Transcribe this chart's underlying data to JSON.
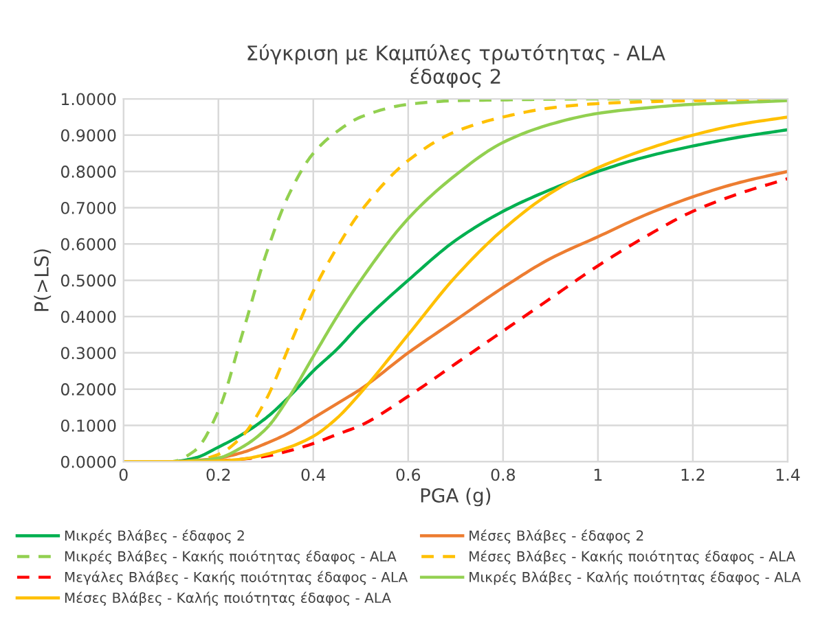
{
  "chart_data": {
    "type": "line",
    "title": "Σύγκριση με Καμπύλες τρωτότητας - ALA\nέδαφος 2",
    "xlabel": "PGA (g)",
    "ylabel": "P(>LS)",
    "x": [
      0,
      0.1,
      0.15,
      0.2,
      0.25,
      0.3,
      0.35,
      0.4,
      0.45,
      0.5,
      0.6,
      0.7,
      0.8,
      0.9,
      1.0,
      1.1,
      1.2,
      1.3,
      1.4
    ],
    "series": [
      {
        "name": "Μικρές Βλάβες - έδαφος 2",
        "color": "#00b050",
        "line_style": "solid",
        "values": [
          0,
          0,
          0.01,
          0.04,
          0.075,
          0.12,
          0.18,
          0.25,
          0.31,
          0.38,
          0.5,
          0.61,
          0.69,
          0.75,
          0.8,
          0.84,
          0.87,
          0.895,
          0.915
        ]
      },
      {
        "name": "Μέσες Βλάβες - έδαφος 2",
        "color": "#ed7d31",
        "line_style": "solid",
        "values": [
          0,
          0,
          0.003,
          0.01,
          0.025,
          0.05,
          0.08,
          0.12,
          0.16,
          0.2,
          0.3,
          0.39,
          0.48,
          0.56,
          0.62,
          0.68,
          0.73,
          0.77,
          0.8
        ]
      },
      {
        "name": "Μικρές Βλάβες - Κακής ποιότητας έδαφος - ALA",
        "color": "#92d050",
        "line_style": "dashed",
        "values": [
          0,
          0,
          0.03,
          0.14,
          0.35,
          0.57,
          0.74,
          0.85,
          0.91,
          0.95,
          0.985,
          0.995,
          0.997,
          0.999,
          1.0,
          1.0,
          1.0,
          1.0,
          1.0
        ]
      },
      {
        "name": "Μέσες Βλάβες - Κακής ποιότητας έδαφος - ALA",
        "color": "#ffc000",
        "line_style": "dashed",
        "values": [
          0,
          0,
          0.003,
          0.02,
          0.07,
          0.17,
          0.32,
          0.47,
          0.59,
          0.69,
          0.83,
          0.91,
          0.95,
          0.975,
          0.987,
          0.992,
          0.995,
          0.997,
          0.998
        ]
      },
      {
        "name": "Μεγάλες Βλάβες - Κακής ποιότητας έδαφος - ALA",
        "color": "#ff0000",
        "line_style": "dashed",
        "values": [
          null,
          null,
          null,
          0.002,
          0.007,
          0.015,
          0.03,
          0.05,
          0.075,
          0.1,
          0.18,
          0.27,
          0.36,
          0.45,
          0.54,
          0.62,
          0.69,
          0.74,
          0.78
        ]
      },
      {
        "name": "Μικρές Βλάβες - Καλής ποιότητας έδαφος - ALA",
        "color": "#92d050",
        "line_style": "solid",
        "values": [
          0,
          0,
          0.002,
          0.01,
          0.04,
          0.09,
          0.18,
          0.29,
          0.4,
          0.5,
          0.67,
          0.79,
          0.88,
          0.93,
          0.96,
          0.975,
          0.985,
          0.99,
          0.995
        ]
      },
      {
        "name": "Μέσες Βλάβες - Καλής ποιότητας έδαφος - ALA",
        "color": "#ffc000",
        "line_style": "solid",
        "values": [
          0,
          0,
          0,
          0.002,
          0.007,
          0.02,
          0.04,
          0.07,
          0.12,
          0.19,
          0.35,
          0.51,
          0.64,
          0.74,
          0.81,
          0.86,
          0.9,
          0.93,
          0.95
        ]
      }
    ],
    "xlim": [
      0,
      1.4
    ],
    "xticks": [
      0,
      0.2,
      0.4,
      0.6,
      0.8,
      1,
      1.2,
      1.4
    ],
    "ylim": [
      0,
      1
    ],
    "yticks": [
      {
        "value": 0,
        "label": "0.0000"
      },
      {
        "value": 0.1,
        "label": "0.1000"
      },
      {
        "value": 0.2,
        "label": "0.2000"
      },
      {
        "value": 0.3,
        "label": "0.3000"
      },
      {
        "value": 0.4,
        "label": "0.4000"
      },
      {
        "value": 0.5,
        "label": "0.5000"
      },
      {
        "value": 0.6,
        "label": "0.6000"
      },
      {
        "value": 0.7,
        "label": "0.7000"
      },
      {
        "value": 0.8,
        "label": "0.8000"
      },
      {
        "value": 0.9,
        "label": "0.9000"
      },
      {
        "value": 1,
        "label": "1.0000"
      }
    ],
    "grid": true,
    "legend": "bottom",
    "marker": "none"
  }
}
